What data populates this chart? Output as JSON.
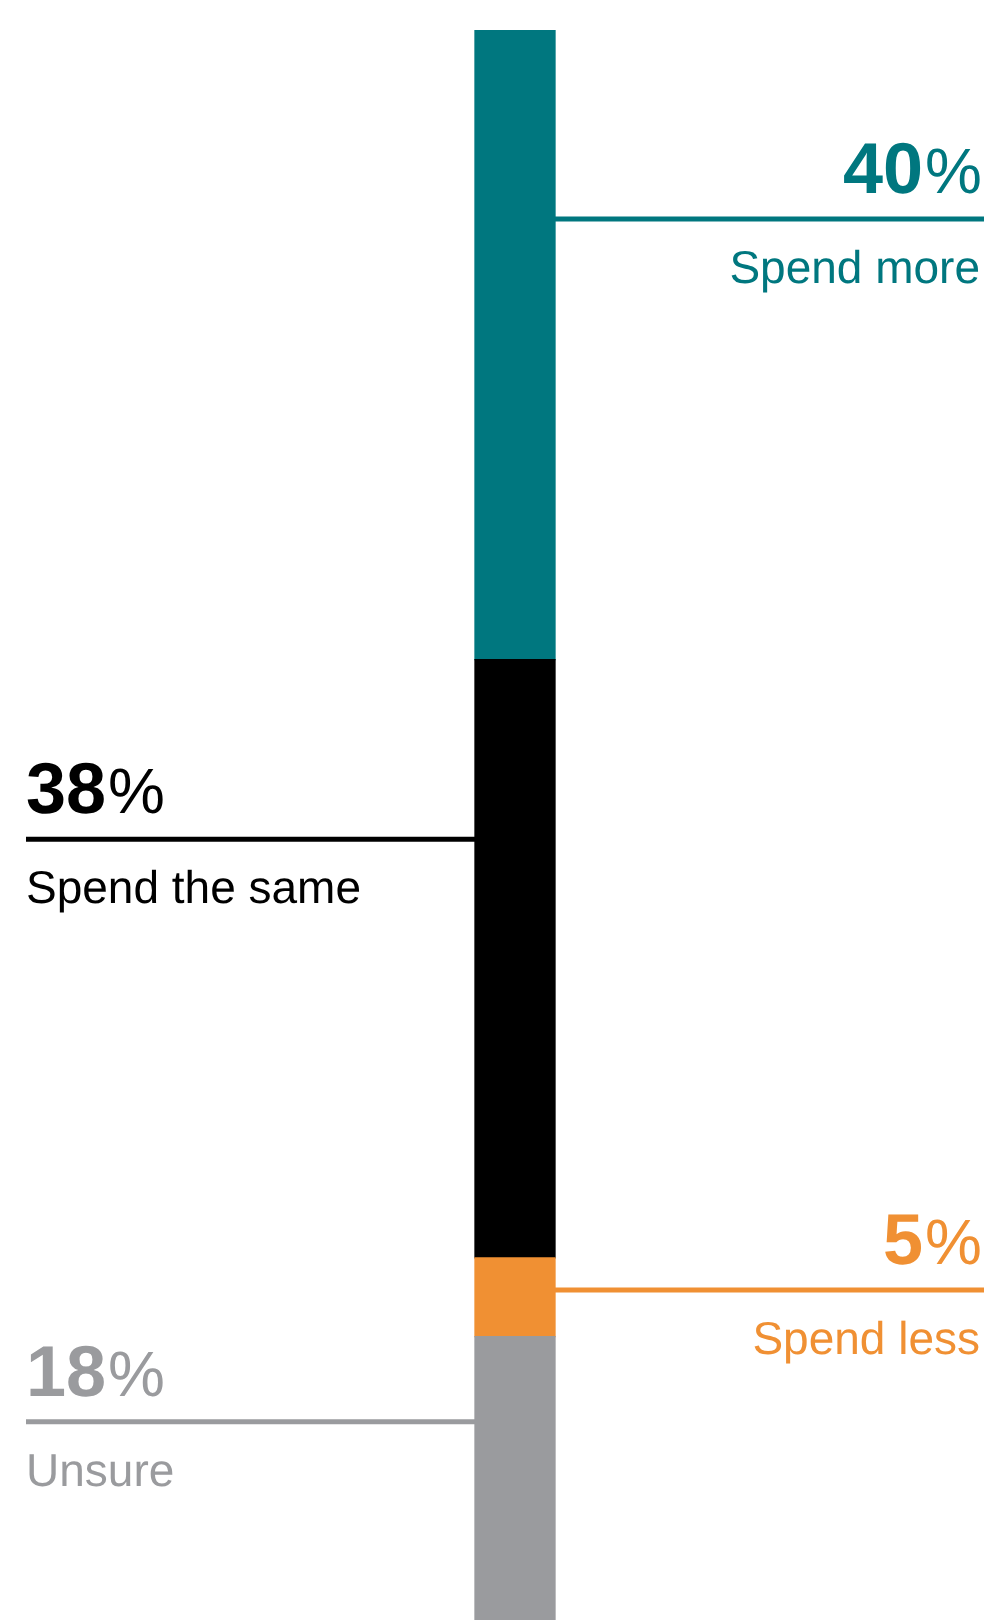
{
  "chart_data": {
    "type": "bar",
    "stacked": true,
    "categories": [
      null
    ],
    "legend": false,
    "data_labels": true,
    "series": [
      {
        "name": "Unsure",
        "color": "#9a9b9e",
        "values": [
          18
        ],
        "value_labels": [
          "18%"
        ]
      },
      {
        "name": "Spend less",
        "color": "#f09033",
        "values": [
          5
        ],
        "value_labels": [
          "5%"
        ]
      },
      {
        "name": "Spend the same",
        "color": "#000000",
        "values": [
          38
        ],
        "value_labels": [
          "38%"
        ]
      },
      {
        "name": "Spend more",
        "color": "#00777f",
        "values": [
          40
        ],
        "value_labels": [
          "40%"
        ]
      }
    ]
  }
}
